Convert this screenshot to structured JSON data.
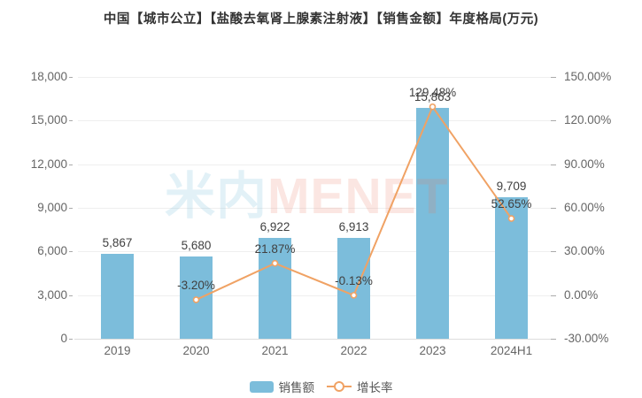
{
  "title": "中国【城市公立】【盐酸去氧肾上腺素注射液】【销售金额】年度格局(万元)",
  "watermark": {
    "cjk": "米内",
    "latin": "MENET"
  },
  "legend": [
    {
      "label": "销售额"
    },
    {
      "label": "增长率"
    }
  ],
  "colors": {
    "bar": "#7CBDDB",
    "line": "#F0A264",
    "marker_fill": "#FFFFFF",
    "grid": "#EFEFEF",
    "axis_line": "#DDDDDD",
    "tick": "#AAAAAA",
    "axis_text": "#666666",
    "data_label": "#404040",
    "title_text": "#333333",
    "watermark_cjk": "rgba(124,189,219,0.22)",
    "watermark_latin": "rgba(235,115,95,0.18)"
  },
  "chart_data": {
    "type": "bar",
    "title": "中国【城市公立】【盐酸去氧肾上腺素注射液】【销售金额】年度格局(万元)",
    "categories": [
      "2019",
      "2020",
      "2021",
      "2022",
      "2023",
      "2024H1"
    ],
    "series": [
      {
        "name": "销售额",
        "type": "bar",
        "axis": "left",
        "values": [
          5867,
          5680,
          6922,
          6913,
          15863,
          9709
        ],
        "labels": [
          "5,867",
          "5,680",
          "6,922",
          "6,913",
          "15,863",
          "9,709"
        ]
      },
      {
        "name": "增长率",
        "type": "line",
        "axis": "right",
        "values": [
          null,
          -3.2,
          21.87,
          -0.13,
          129.48,
          52.65
        ],
        "labels": [
          "",
          "-3.20%",
          "21.87%",
          "-0.13%",
          "129.48%",
          "52.65%"
        ]
      }
    ],
    "left_axis": {
      "min": 0,
      "max": 18000,
      "tick_values": [
        0,
        3000,
        6000,
        9000,
        12000,
        15000,
        18000
      ],
      "tick_labels": [
        "0",
        "3,000",
        "6,000",
        "9,000",
        "12,000",
        "15,000",
        "18,000"
      ]
    },
    "right_axis": {
      "min": -30,
      "max": 150,
      "tick_values": [
        -30,
        0,
        30,
        60,
        90,
        120,
        150
      ],
      "tick_labels": [
        "-30.00%",
        "0.00%",
        "30.00%",
        "60.00%",
        "90.00%",
        "120.00%",
        "150.00%"
      ]
    },
    "grid": true,
    "legend_position": "bottom"
  }
}
